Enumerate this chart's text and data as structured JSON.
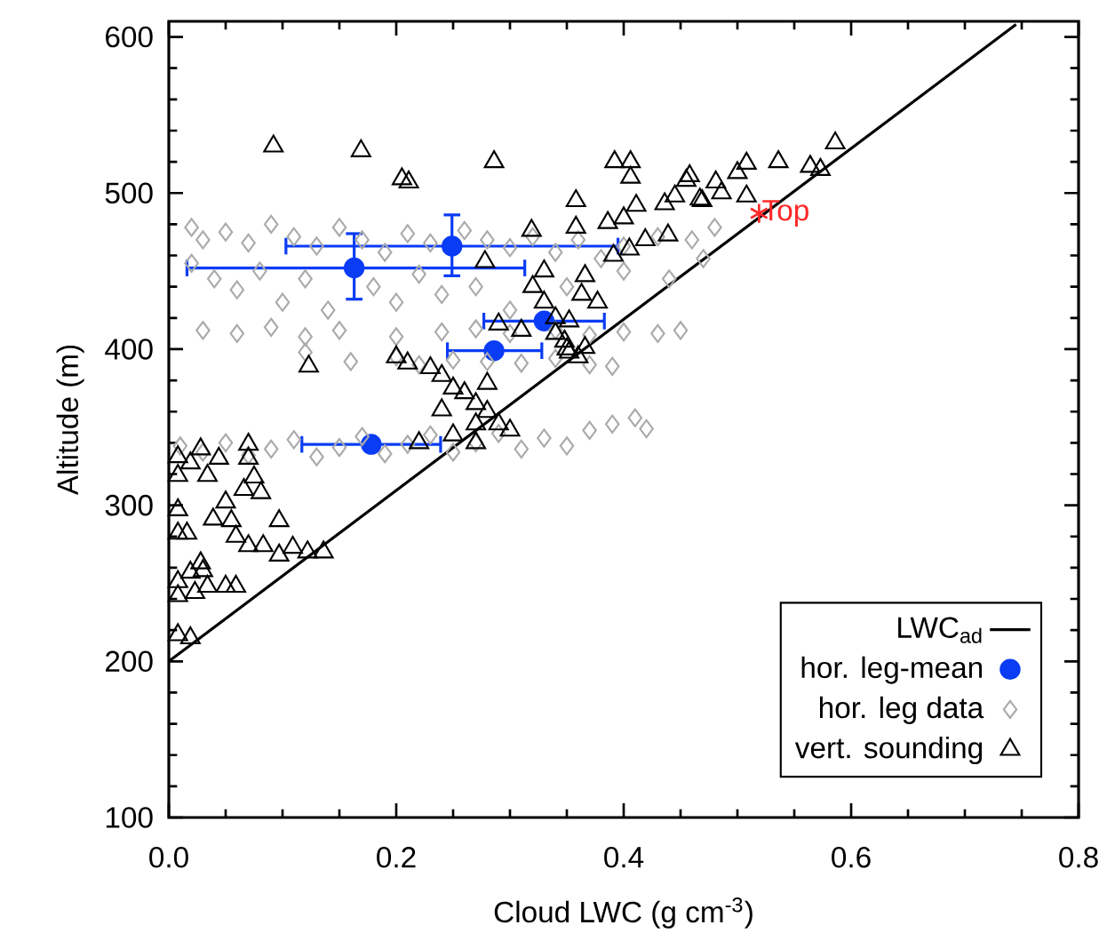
{
  "chart_data": {
    "type": "scatter",
    "xlabel": "Cloud LWC (g cm$^{-3}$)",
    "ylabel": "Altitude (m)",
    "xlim": [
      0,
      0.8
    ],
    "ylim": [
      100,
      610
    ],
    "xticks": [
      {
        "value": 0,
        "label": "0.0"
      },
      0.2,
      0.4,
      0.6,
      0.8
    ],
    "yticks": [
      100,
      200,
      300,
      400,
      500,
      600
    ],
    "legend": "bottom right",
    "annotations": [
      {
        "text": "Top",
        "x": 0.519,
        "y": 487
      }
    ],
    "series": [
      {
        "name": "LWC$_{ad}$",
        "type": "line",
        "color": "#000000",
        "marker": "none",
        "x": [
          0,
          0.745
        ],
        "values": [
          200,
          608
        ]
      },
      {
        "name": "hor. leg-mean",
        "type": "scatter",
        "color": "#0a3cf5",
        "marker": "circle",
        "x": [
          0.163,
          0.249,
          0.33,
          0.286,
          0.178
        ],
        "values": [
          452,
          466,
          418,
          399,
          339
        ],
        "xerrors": [
          [
            0.016,
            0.313
          ],
          [
            0.103,
            0.395
          ],
          [
            0.277,
            0.383
          ],
          [
            0.245,
            0.328
          ],
          [
            0.117,
            0.239
          ]
        ],
        "errors": [
          [
            432,
            474
          ],
          [
            447,
            486
          ],
          null,
          null,
          null
        ]
      },
      {
        "name": "hor. leg data",
        "type": "scatter",
        "color": "#aaaaaa",
        "marker": "diamond",
        "x": [
          0.02,
          0.03,
          0.05,
          0.07,
          0.09,
          0.11,
          0.13,
          0.15,
          0.17,
          0.19,
          0.21,
          0.23,
          0.26,
          0.28,
          0.3,
          0.32,
          0.34,
          0.36,
          0.38,
          0.4,
          0.43,
          0.46,
          0.48,
          0.02,
          0.04,
          0.06,
          0.08,
          0.1,
          0.12,
          0.14,
          0.18,
          0.2,
          0.22,
          0.24,
          0.27,
          0.3,
          0.35,
          0.4,
          0.44,
          0.47,
          0.03,
          0.06,
          0.09,
          0.12,
          0.15,
          0.2,
          0.24,
          0.27,
          0.3,
          0.34,
          0.37,
          0.4,
          0.43,
          0.45,
          0.12,
          0.16,
          0.2,
          0.22,
          0.25,
          0.28,
          0.31,
          0.34,
          0.37,
          0.39,
          0.01,
          0.03,
          0.05,
          0.07,
          0.09,
          0.11,
          0.13,
          0.15,
          0.17,
          0.19,
          0.21,
          0.23,
          0.25,
          0.27,
          0.29,
          0.31,
          0.33,
          0.35,
          0.37,
          0.39,
          0.41,
          0.42
        ],
        "values": [
          478,
          470,
          475,
          468,
          480,
          472,
          466,
          478,
          470,
          462,
          474,
          468,
          476,
          470,
          465,
          472,
          462,
          470,
          458,
          466,
          472,
          470,
          478,
          455,
          445,
          438,
          450,
          430,
          445,
          425,
          440,
          430,
          448,
          435,
          440,
          425,
          440,
          450,
          445,
          458,
          412,
          410,
          414,
          408,
          412,
          408,
          411,
          413,
          410,
          412,
          409,
          411,
          410,
          412,
          398,
          392,
          395,
          390,
          393,
          392,
          391,
          394,
          390,
          389,
          338,
          334,
          340,
          332,
          336,
          342,
          331,
          337,
          344,
          333,
          339,
          345,
          334,
          340,
          346,
          336,
          343,
          338,
          348,
          352,
          356,
          349
        ]
      },
      {
        "name": "vert. sounding",
        "type": "scatter",
        "color": "#000000",
        "marker": "triangle",
        "x": [
          0.092,
          0.169,
          0.205,
          0.211,
          0.286,
          0.319,
          0.278,
          0.123,
          0.2,
          0.21,
          0.23,
          0.24,
          0.25,
          0.26,
          0.27,
          0.28,
          0.29,
          0.3,
          0.27,
          0.25,
          0.28,
          0.24,
          0.22,
          0.27,
          0.32,
          0.33,
          0.34,
          0.34,
          0.35,
          0.36,
          0.33,
          0.31,
          0.29,
          0.392,
          0.406,
          0.406,
          0.458,
          0.467,
          0.5,
          0.508,
          0.536,
          0.586,
          0.564,
          0.573,
          0.481,
          0.455,
          0.486,
          0.508,
          0.469,
          0.358,
          0.411,
          0.445,
          0.386,
          0.4,
          0.436,
          0.358,
          0.439,
          0.419,
          0.391,
          0.405,
          0.366,
          0.363,
          0.377,
          0.352,
          0.348,
          0.366,
          0.352,
          0.008,
          0.008,
          0.019,
          0.028,
          0.044,
          0.07,
          0.07,
          0.075,
          0.034,
          0.05,
          0.066,
          0.081,
          0.008,
          0.008,
          0.016,
          0.039,
          0.055,
          0.059,
          0.07,
          0.083,
          0.097,
          0.097,
          0.109,
          0.122,
          0.136,
          0.008,
          0.019,
          0.028,
          0.03,
          0.023,
          0.008,
          0.034,
          0.05,
          0.059,
          0.008,
          0.019
        ],
        "values": [
          530,
          527,
          509,
          507,
          520,
          476,
          456,
          389,
          395,
          391,
          388,
          383,
          375,
          372,
          365,
          360,
          352,
          348,
          352,
          345,
          378,
          361,
          340,
          340,
          440,
          430,
          420,
          410,
          400,
          395,
          450,
          412,
          416,
          520,
          520,
          510,
          511,
          496,
          513,
          519,
          520,
          532,
          517,
          515,
          507,
          508,
          500,
          498,
          495,
          495,
          492,
          498,
          481,
          484,
          493,
          478,
          473,
          470,
          460,
          464,
          447,
          435,
          430,
          418,
          405,
          401,
          398,
          331,
          319,
          327,
          336,
          330,
          339,
          330,
          318,
          319,
          302,
          310,
          308,
          297,
          282,
          282,
          291,
          290,
          280,
          274,
          274,
          290,
          268,
          273,
          270,
          270,
          251,
          257,
          263,
          258,
          244,
          242,
          248,
          248,
          248,
          217,
          215
        ]
      }
    ]
  }
}
